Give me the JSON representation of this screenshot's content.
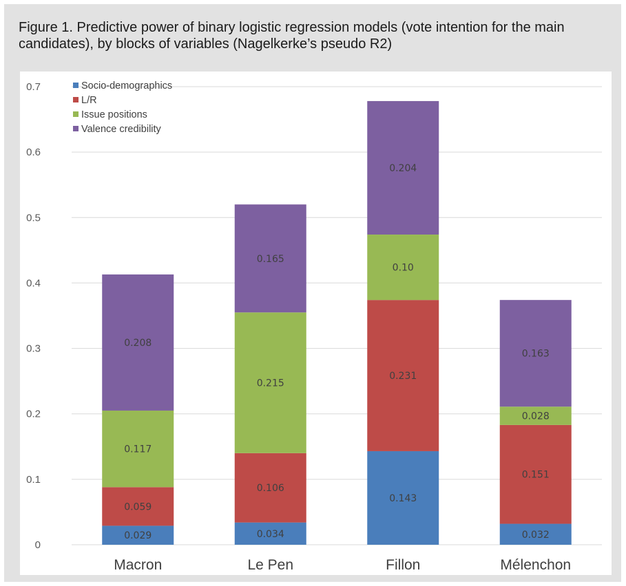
{
  "caption": "Figure 1. Predictive power of binary logistic regression models (vote intention for the main candidates), by blocks of variables (Nagelkerke’s pseudo R2)",
  "chart_data": {
    "type": "bar",
    "stacked": true,
    "categories": [
      "Macron",
      "Le Pen",
      "Fillon",
      "Mélenchon"
    ],
    "series": [
      {
        "name": "Socio-demographics",
        "color": "#4a7ebb",
        "values": [
          0.029,
          0.034,
          0.143,
          0.032
        ],
        "labels": [
          "0.029",
          "0.034",
          "0.143",
          "0.032"
        ]
      },
      {
        "name": "L/R",
        "color": "#be4b48",
        "values": [
          0.059,
          0.106,
          0.231,
          0.151
        ],
        "labels": [
          "0.059",
          "0.106",
          "0.231",
          "0.151"
        ]
      },
      {
        "name": "Issue positions",
        "color": "#98b954",
        "values": [
          0.117,
          0.215,
          0.1,
          0.028
        ],
        "labels": [
          "0.117",
          "0.215",
          "0.10",
          "0.028"
        ]
      },
      {
        "name": "Valence credibility",
        "color": "#7d60a0",
        "values": [
          0.208,
          0.165,
          0.204,
          0.163
        ],
        "labels": [
          "0.208",
          "0.165",
          "0.204",
          "0.163"
        ]
      }
    ],
    "yticks": [
      "0",
      "0.1",
      "0.2",
      "0.3",
      "0.4",
      "0.5",
      "0.6",
      "0.7"
    ],
    "ylim": [
      0,
      0.7
    ],
    "grid": true,
    "legend_position": "top-left"
  }
}
